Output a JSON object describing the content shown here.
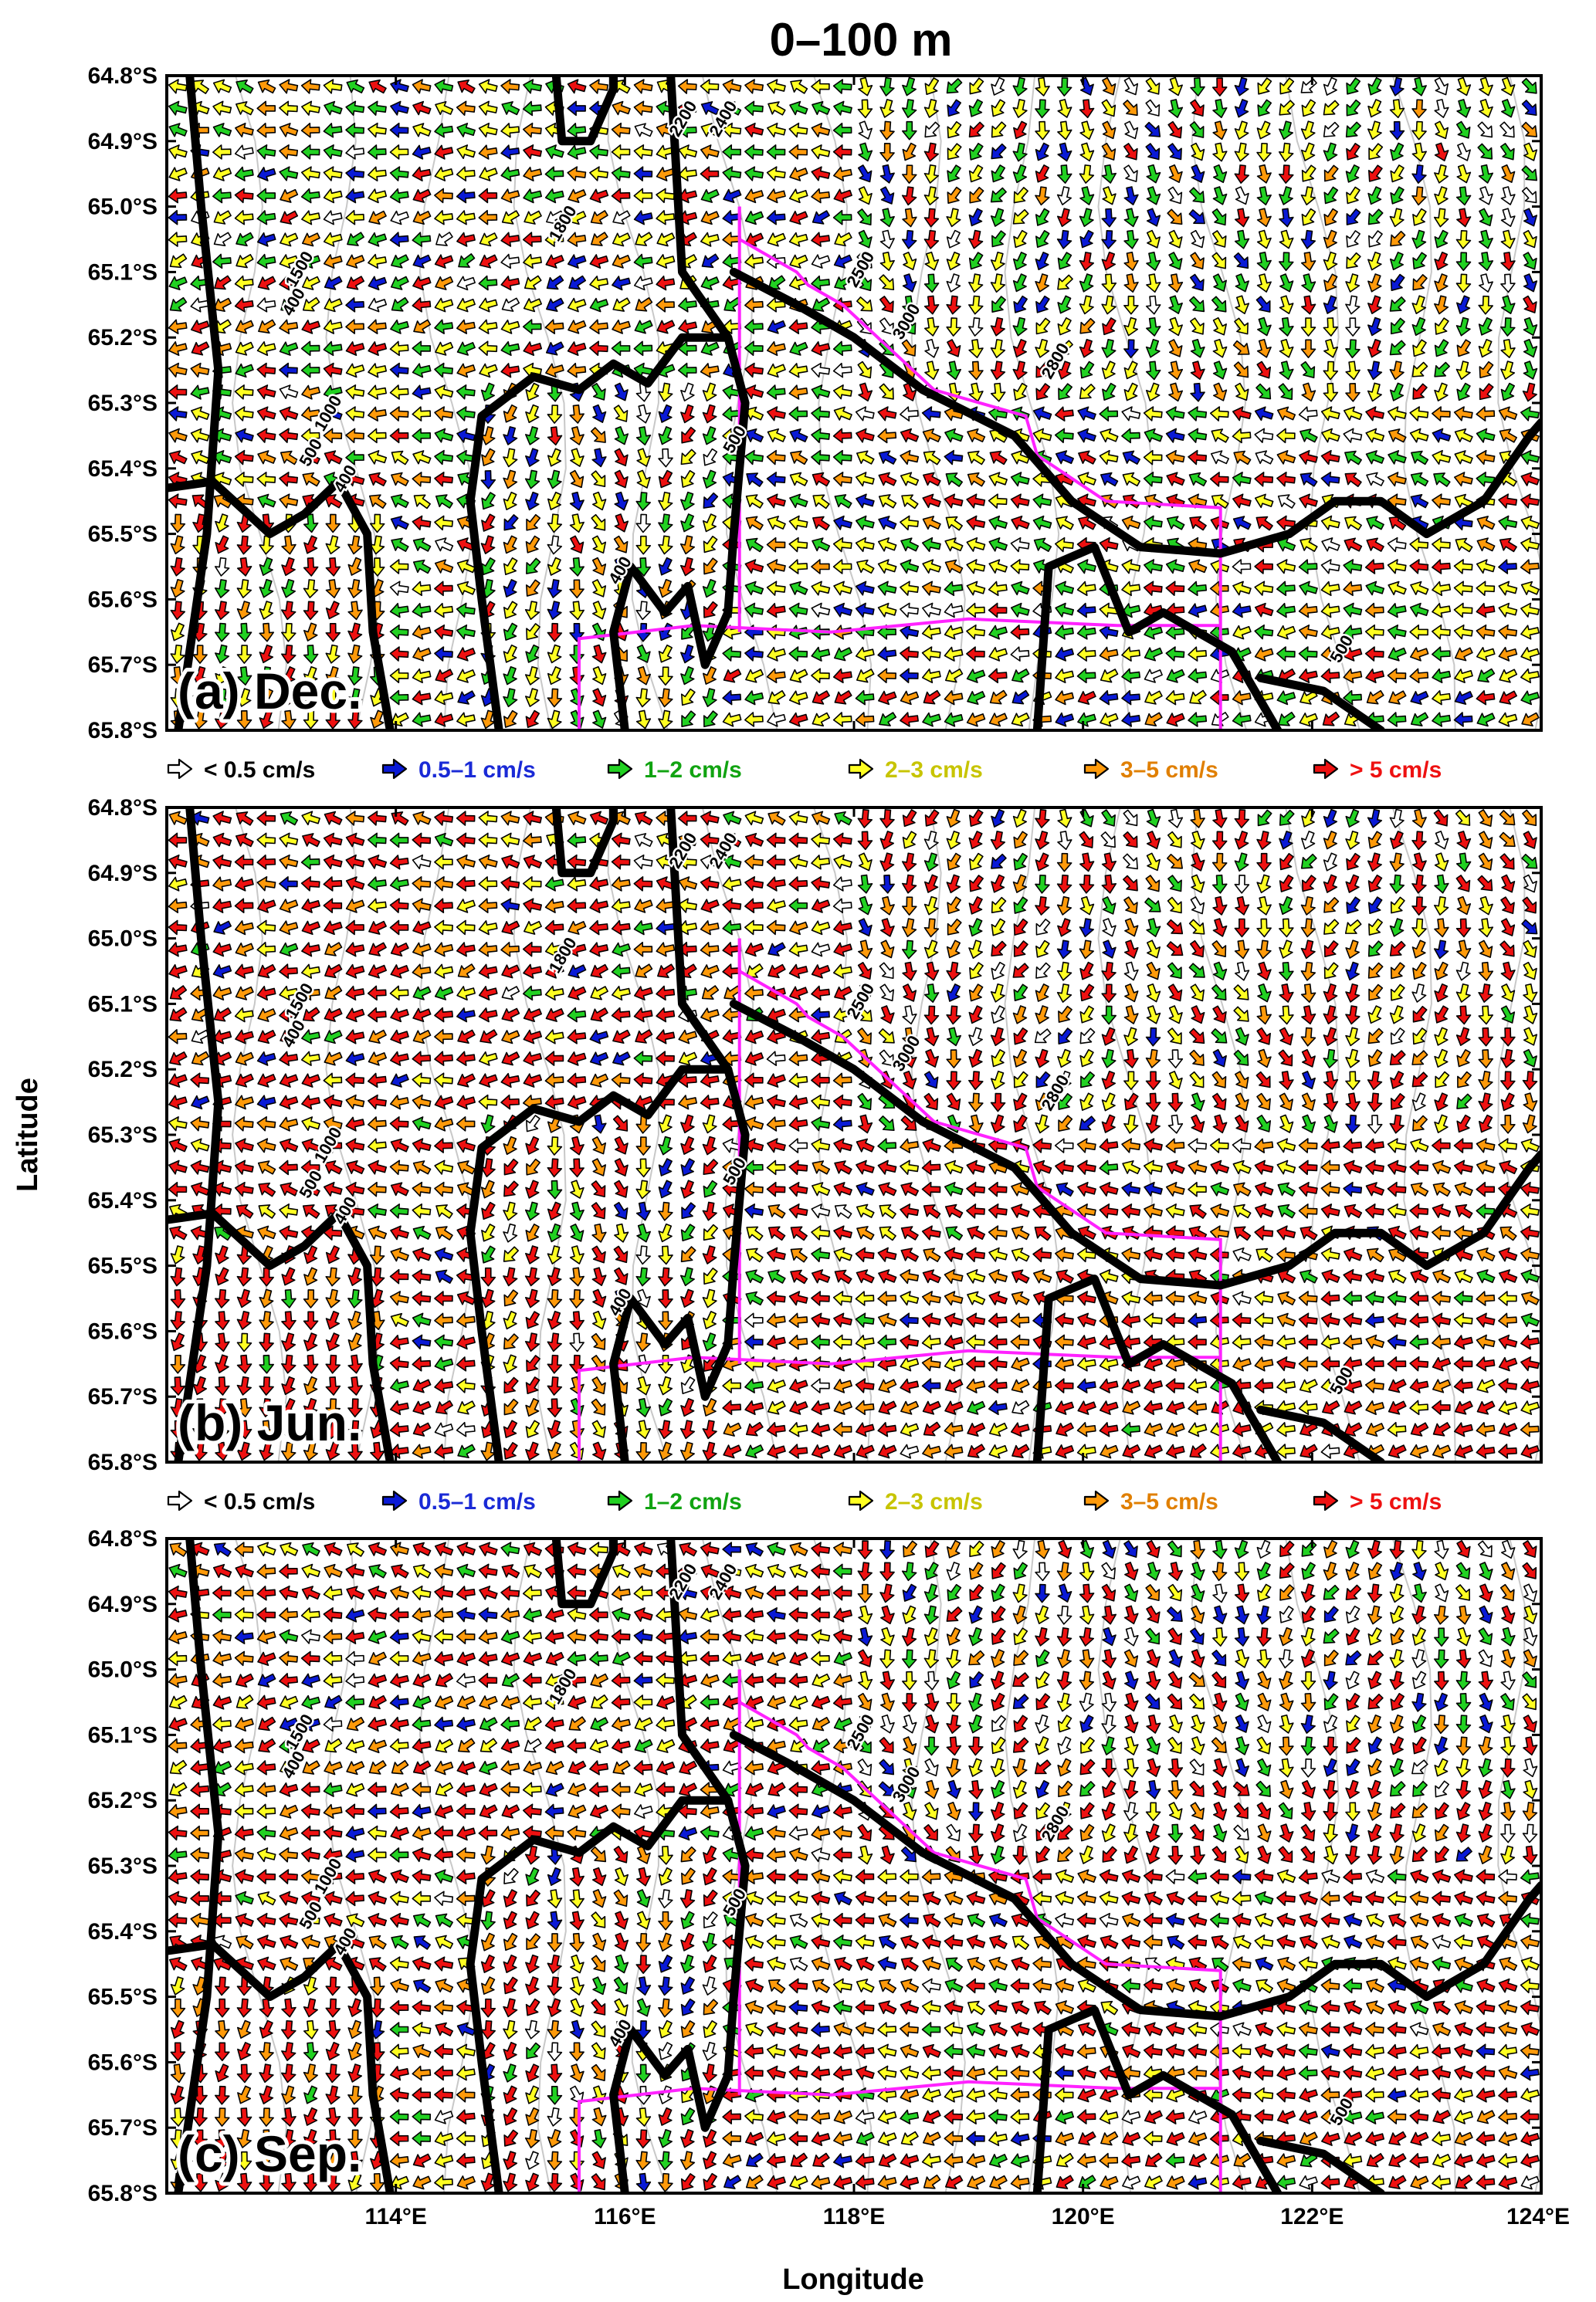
{
  "title": "0–100 m",
  "axes": {
    "xlabel": "Longitude",
    "ylabel": "Latitude",
    "x_ticks": [
      "114°E",
      "116°E",
      "118°E",
      "120°E",
      "122°E",
      "124°E"
    ],
    "x_tick_values": [
      114,
      116,
      118,
      120,
      122,
      124
    ],
    "y_ticks": [
      "64.8°S",
      "64.9°S",
      "65.0°S",
      "65.1°S",
      "65.2°S",
      "65.3°S",
      "65.4°S",
      "65.5°S",
      "65.6°S",
      "65.7°S",
      "65.8°S"
    ],
    "y_tick_values": [
      -64.8,
      -64.9,
      -65.0,
      -65.1,
      -65.2,
      -65.3,
      -65.4,
      -65.5,
      -65.6,
      -65.7,
      -65.8
    ]
  },
  "legend": [
    {
      "label": "< 0.5 cm/s",
      "color": "#ffffff",
      "text_color": "#000000"
    },
    {
      "label": "0.5–1 cm/s",
      "color": "#0a1ad6",
      "text_color": "#1a2ad6"
    },
    {
      "label": "1–2 cm/s",
      "color": "#22d122",
      "text_color": "#11a311"
    },
    {
      "label": "2–3 cm/s",
      "color": "#ffff22",
      "text_color": "#c7c400"
    },
    {
      "label": "3–5 cm/s",
      "color": "#ff9a0a",
      "text_color": "#e07f00"
    },
    {
      "label": "> 5 cm/s",
      "color": "#ee1111",
      "text_color": "#ee1111"
    }
  ],
  "contour_labels": [
    "400",
    "500",
    "1000",
    "1500",
    "1800",
    "2200",
    "2400",
    "2500",
    "2800",
    "3000"
  ],
  "chart_data": [
    {
      "type": "vector-field",
      "panel_label": "(a) Dec.",
      "xlim": [
        112,
        124
      ],
      "ylim": [
        -65.8,
        -64.8
      ],
      "dominant_speed_class": "2–3 cm/s",
      "mean_flow": "westward",
      "speed_mix": [
        0.05,
        0.08,
        0.25,
        0.3,
        0.17,
        0.15
      ]
    },
    {
      "type": "vector-field",
      "panel_label": "(b) Jun.",
      "xlim": [
        112,
        124
      ],
      "ylim": [
        -65.8,
        -64.8
      ],
      "dominant_speed_class": "> 5 cm/s",
      "mean_flow": "westward",
      "speed_mix": [
        0.02,
        0.03,
        0.07,
        0.15,
        0.23,
        0.5
      ]
    },
    {
      "type": "vector-field",
      "panel_label": "(c) Sep.",
      "xlim": [
        112,
        124
      ],
      "ylim": [
        -65.8,
        -64.8
      ],
      "dominant_speed_class": "> 5 cm/s",
      "mean_flow": "westward",
      "speed_mix": [
        0.03,
        0.06,
        0.1,
        0.16,
        0.2,
        0.45
      ]
    }
  ]
}
